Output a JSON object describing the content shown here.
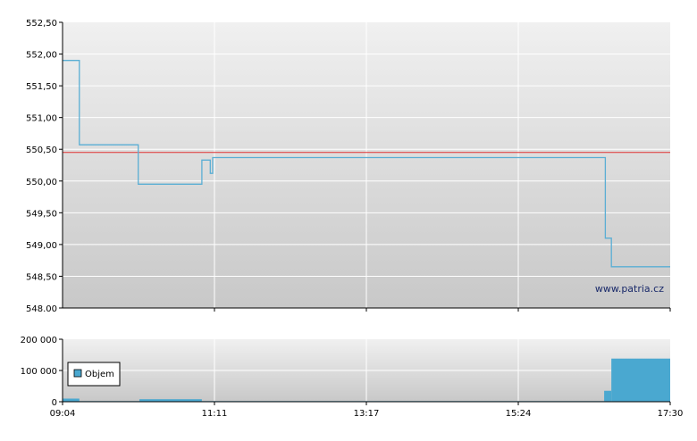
{
  "watermark": "www.patria.cz",
  "colors": {
    "price_line": "#5aaed4",
    "reference_line": "#e03030",
    "volume_fill": "#4aa8d0",
    "grid": "#ffffff",
    "axis": "#000000",
    "bg_top": "#f0f0f0",
    "bg_bottom": "#c8c8c8"
  },
  "chart_data": [
    {
      "type": "line",
      "title": "",
      "xlabel": "",
      "ylabel": "",
      "grid": true,
      "x_range_minutes": [
        544,
        1050
      ],
      "ylim": [
        548.0,
        552.5
      ],
      "y_tick_labels": [
        "552,50",
        "552,00",
        "551,50",
        "551,00",
        "550,50",
        "550,00",
        "549,50",
        "549,00",
        "548,50",
        "548.00"
      ],
      "x_tick_labels": [
        "09:04",
        "11:11",
        "13:17",
        "15:24",
        "17:30"
      ],
      "reference_value": 550.45,
      "series": [
        {
          "values_comment": "",
          "x": [
            544,
            558,
            558,
            607,
            607,
            660,
            660,
            667,
            667,
            669,
            669,
            996,
            996,
            1001,
            1001,
            1070
          ],
          "y": [
            551.9,
            551.9,
            550.57,
            550.57,
            549.95,
            549.95,
            550.33,
            550.33,
            550.12,
            550.12,
            550.37,
            550.37,
            549.1,
            549.1,
            548.65,
            548.65
          ]
        }
      ]
    },
    {
      "type": "bar",
      "title": "",
      "xlabel": "",
      "ylabel": "",
      "grid": true,
      "ylim": [
        0,
        200000
      ],
      "y_tick_labels": [
        "200 000",
        "100 000",
        "0"
      ],
      "legend": {
        "placement": "left",
        "entries": [
          "Objem"
        ]
      },
      "series": [
        {
          "name": "Objem",
          "bars": [
            {
              "x0": 544,
              "x1": 558,
              "value": 10000
            },
            {
              "x0": 558,
              "x1": 608,
              "value": 2000
            },
            {
              "x0": 608,
              "x1": 660,
              "value": 8000
            },
            {
              "x0": 660,
              "x1": 995,
              "value": 2000
            },
            {
              "x0": 995,
              "x1": 1001,
              "value": 35000
            },
            {
              "x0": 1001,
              "x1": 1060,
              "value": 138000
            },
            {
              "x0": 1060,
              "x1": 1050,
              "value": 35000
            }
          ]
        }
      ]
    }
  ]
}
